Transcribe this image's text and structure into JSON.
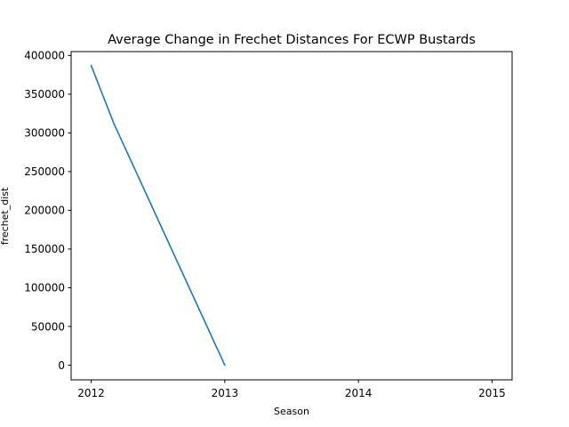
{
  "chart_data": {
    "type": "line",
    "title": "Average Change in Frechet Distances For ECWP Bustards",
    "xlabel": "Season",
    "ylabel": "frechet_dist",
    "x_ticks": [
      2012,
      2013,
      2014,
      2015
    ],
    "y_ticks": [
      0,
      50000,
      100000,
      150000,
      200000,
      250000,
      300000,
      350000,
      400000
    ],
    "xlim": [
      2011.85,
      2015.15
    ],
    "ylim": [
      -19000,
      405000
    ],
    "grid": false,
    "series": [
      {
        "color": "#1f77b4",
        "x": [
          2012,
          2012.17,
          2013
        ],
        "y": [
          387000,
          312000,
          0
        ]
      }
    ]
  }
}
